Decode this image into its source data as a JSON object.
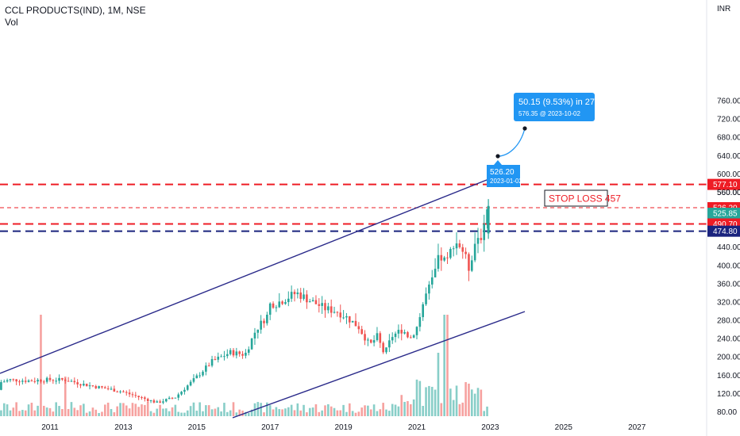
{
  "header": {
    "title": "CCL PRODUCTS(IND), 1M, NSE",
    "sub": "Vol"
  },
  "currency": "INR",
  "colors": {
    "up": "#26a69a",
    "down": "#ef5350",
    "red_line": "#ee1c25",
    "navy_line": "#1a237e",
    "channel": "#2a2a8a",
    "blue": "#2196f3"
  },
  "chart_data": {
    "type": "candlestick",
    "ylim": [
      70,
      775
    ],
    "y_ticks": [
      80,
      120,
      160,
      200,
      240,
      280,
      320,
      360,
      400,
      440,
      480,
      520,
      560,
      600,
      640,
      680,
      720,
      760
    ],
    "x_ticks": [
      "2011",
      "2013",
      "2015",
      "2017",
      "2019",
      "2021",
      "2023",
      "2025",
      "2027"
    ],
    "price_tags": [
      {
        "label": "577.10",
        "price": 577.1,
        "bg": "#ee1c25"
      },
      {
        "label": "560.00",
        "price": 560.0,
        "bg": "none"
      },
      {
        "label": "526.20",
        "price": 526.2,
        "bg": "#ee1c25"
      },
      {
        "label": "525.85",
        "price": 514.0,
        "bg": "#26a69a",
        "sub": "12d 5h"
      },
      {
        "label": "490.70",
        "price": 490.7,
        "bg": "#ee1c25"
      },
      {
        "label": "474.80",
        "price": 474.8,
        "bg": "#1a237e"
      }
    ],
    "horizontal_lines": [
      {
        "price": 577.1,
        "style": "red-dashed"
      },
      {
        "price": 526.2,
        "style": "red-dashed-thin"
      },
      {
        "price": 490.7,
        "style": "red-dashed"
      },
      {
        "price": 474.8,
        "style": "navy-dashed"
      }
    ],
    "channel_upper": {
      "from": [
        "2009-01",
        118
      ],
      "to": [
        "2022-10",
        490
      ]
    },
    "channel_lower": {
      "from": [
        "2015-10",
        70
      ],
      "to": [
        "2023-10",
        252
      ]
    },
    "annotations": {
      "projection_title": "50.15 (9.53%) in 273d",
      "projection_sub": "576.35 @ 2023-10-02",
      "marker_price": "526.20",
      "marker_date": "2023-01-02",
      "stop_loss": "STOP LOSS 457"
    },
    "candles": []
  }
}
